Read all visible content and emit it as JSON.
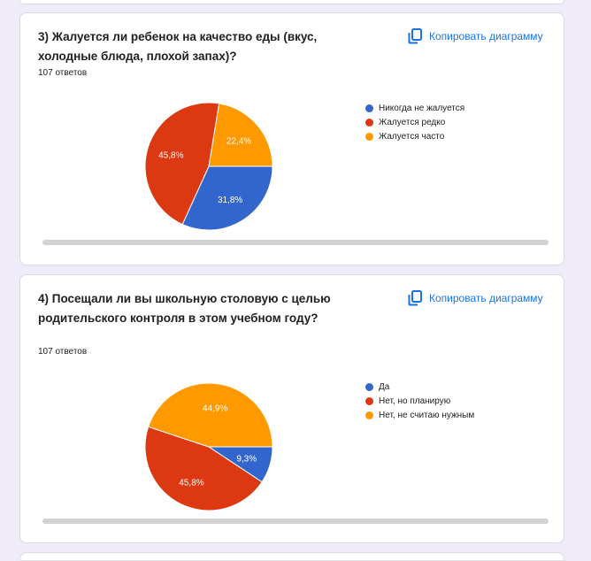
{
  "cards": [
    {
      "title": "3) Жалуется ли ребенок на качество еды (вкус, холодные блюда, плохой запах)?",
      "copy_label": "Копировать диаграмму",
      "copy_icon": "copy-icon",
      "responses": "107 ответов"
    },
    {
      "title": "4) Посещали ли вы школьную столовую с целью родительского контроля в этом учебном году?",
      "copy_label": "Копировать диаграмму",
      "copy_icon": "copy-icon",
      "responses": "107 ответов"
    }
  ],
  "chart_data": [
    {
      "type": "pie",
      "categories": [
        "Никогда не жалуется",
        "Жалуется редко",
        "Жалуется часто"
      ],
      "values": [
        31.8,
        45.8,
        22.4
      ],
      "value_labels": [
        "31,8%",
        "45,8%",
        "22,4%"
      ],
      "colors": [
        "#3366cc",
        "#dc3912",
        "#ff9900"
      ],
      "legend_position": "right"
    },
    {
      "type": "pie",
      "categories": [
        "Да",
        "Нет, но планирую",
        "Нет, не считаю нужным"
      ],
      "values": [
        9.3,
        45.8,
        44.9
      ],
      "value_labels": [
        "9,3%",
        "45,8%",
        "44,9%"
      ],
      "colors": [
        "#3366cc",
        "#dc3912",
        "#ff9900"
      ],
      "legend_position": "right"
    }
  ]
}
